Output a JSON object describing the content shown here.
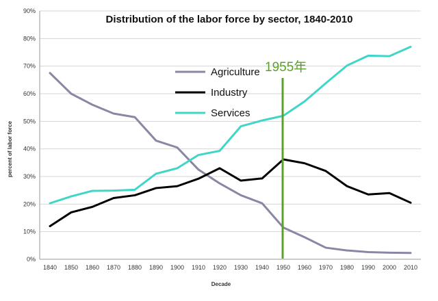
{
  "chart_data": {
    "type": "line",
    "title": "Distribution of the labor force by sector, 1840-2010",
    "xlabel": "Decade",
    "ylabel": "percent of labor force",
    "x": [
      1840,
      1850,
      1860,
      1870,
      1880,
      1890,
      1900,
      1910,
      1920,
      1930,
      1940,
      1950,
      1960,
      1970,
      1980,
      1990,
      2000,
      2010
    ],
    "ylim": [
      0,
      90
    ],
    "yticks": [
      0,
      10,
      20,
      30,
      40,
      50,
      60,
      70,
      80,
      90
    ],
    "ytick_labels": [
      "0%",
      "10%",
      "20%",
      "30%",
      "40%",
      "50%",
      "60%",
      "70%",
      "80%",
      "90%"
    ],
    "grid": "horizontal",
    "legend_position": "center",
    "series": [
      {
        "name": "Agriculture",
        "color": "#8a86a3",
        "values": [
          67.5,
          60,
          56,
          52.8,
          51.5,
          43,
          40.5,
          32.5,
          27.5,
          23.2,
          20.3,
          11.5,
          8,
          4.2,
          3.2,
          2.6,
          2.4,
          2.3
        ]
      },
      {
        "name": "Industry",
        "color": "#000000",
        "values": [
          12,
          17,
          19,
          22.2,
          23.2,
          25.8,
          26.5,
          29.2,
          33,
          28.5,
          29.3,
          36.2,
          34.8,
          32,
          26.5,
          23.5,
          24,
          20.5
        ]
      },
      {
        "name": "Services",
        "color": "#3fd6c8",
        "values": [
          20.3,
          22.8,
          24.8,
          24.9,
          25.2,
          31,
          33,
          37.8,
          39.3,
          48.2,
          50.3,
          52,
          57.2,
          63.8,
          70.2,
          73.8,
          73.6,
          77
        ]
      }
    ],
    "annotations": [
      {
        "type": "vertical_line",
        "x": 1950,
        "label": "1955年",
        "color": "#5aa02c"
      }
    ]
  }
}
